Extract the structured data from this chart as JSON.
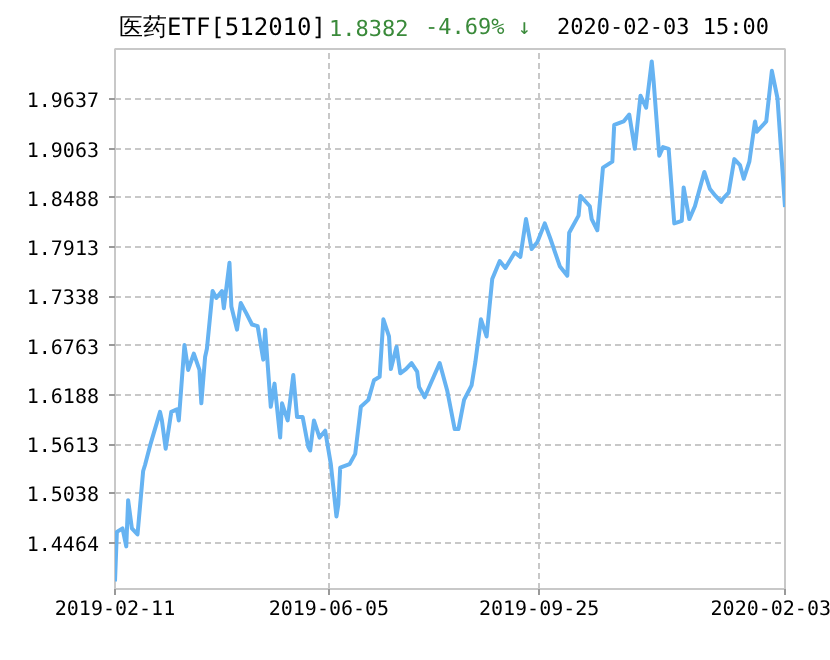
{
  "chart_data": {
    "type": "line",
    "title": "医药ETF[512010]",
    "annotations": [
      "1.8382",
      "-4.69% ↓",
      "2020-02-03 15:00"
    ],
    "x": [
      "2019-02-11",
      "2019-02-12",
      "2019-02-15",
      "2019-02-17",
      "2019-02-18",
      "2019-02-20",
      "2019-02-23",
      "2019-02-26",
      "2019-02-27",
      "2019-03-02",
      "2019-03-07",
      "2019-03-08",
      "2019-03-10",
      "2019-03-13",
      "2019-03-16",
      "2019-03-17",
      "2019-03-20",
      "2019-03-22",
      "2019-03-25",
      "2019-03-28",
      "2019-03-29",
      "2019-03-31",
      "2019-04-01",
      "2019-04-04",
      "2019-04-06",
      "2019-04-09",
      "2019-04-10",
      "2019-04-13",
      "2019-04-14",
      "2019-04-17",
      "2019-04-19",
      "2019-04-22",
      "2019-04-25",
      "2019-04-28",
      "2019-05-01",
      "2019-05-02",
      "2019-05-05",
      "2019-05-07",
      "2019-05-10",
      "2019-05-11",
      "2019-05-14",
      "2019-05-17",
      "2019-05-19",
      "2019-05-22",
      "2019-05-25",
      "2019-05-26",
      "2019-05-28",
      "2019-05-31",
      "2019-06-03",
      "2019-06-06",
      "2019-06-09",
      "2019-06-10",
      "2019-06-11",
      "2019-06-16",
      "2019-06-19",
      "2019-06-22",
      "2019-06-26",
      "2019-06-29",
      "2019-07-02",
      "2019-07-04",
      "2019-07-07",
      "2019-07-08",
      "2019-07-11",
      "2019-07-13",
      "2019-07-16",
      "2019-07-19",
      "2019-07-22",
      "2019-07-23",
      "2019-07-26",
      "2019-08-03",
      "2019-08-07",
      "2019-08-11",
      "2019-08-13",
      "2019-08-16",
      "2019-08-20",
      "2019-08-22",
      "2019-08-25",
      "2019-08-28",
      "2019-08-31",
      "2019-09-04",
      "2019-09-07",
      "2019-09-12",
      "2019-09-15",
      "2019-09-18",
      "2019-09-21",
      "2019-09-24",
      "2019-09-28",
      "2019-10-01",
      "2019-10-06",
      "2019-10-10",
      "2019-10-11",
      "2019-10-16",
      "2019-10-17",
      "2019-10-22",
      "2019-10-23",
      "2019-10-26",
      "2019-10-29",
      "2019-11-03",
      "2019-11-04",
      "2019-11-09",
      "2019-11-12",
      "2019-11-15",
      "2019-11-18",
      "2019-11-21",
      "2019-11-24",
      "2019-11-25",
      "2019-11-28",
      "2019-11-30",
      "2019-12-03",
      "2019-12-06",
      "2019-12-10",
      "2019-12-11",
      "2019-12-14",
      "2019-12-17",
      "2019-12-19",
      "2019-12-22",
      "2019-12-25",
      "2019-12-28",
      "2019-12-31",
      "2020-01-01",
      "2020-01-04",
      "2020-01-07",
      "2020-01-10",
      "2020-01-12",
      "2020-01-15",
      "2020-01-18",
      "2020-01-19",
      "2020-01-24",
      "2020-01-27",
      "2020-01-30",
      "2020-02-03"
    ],
    "series": [
      {
        "color": "#66b3f2",
        "values": [
          1.401,
          1.459,
          1.463,
          1.442,
          1.496,
          1.463,
          1.456,
          1.53,
          1.537,
          1.562,
          1.599,
          1.589,
          1.556,
          1.599,
          1.602,
          1.589,
          1.677,
          1.648,
          1.667,
          1.648,
          1.609,
          1.663,
          1.673,
          1.74,
          1.732,
          1.74,
          1.72,
          1.773,
          1.722,
          1.695,
          1.726,
          1.714,
          1.701,
          1.699,
          1.66,
          1.695,
          1.605,
          1.632,
          1.569,
          1.609,
          1.589,
          1.642,
          1.593,
          1.593,
          1.558,
          1.554,
          1.589,
          1.569,
          1.577,
          1.538,
          1.477,
          1.491,
          1.534,
          1.538,
          1.55,
          1.605,
          1.613,
          1.636,
          1.64,
          1.707,
          1.687,
          1.649,
          1.675,
          1.644,
          1.649,
          1.656,
          1.646,
          1.628,
          1.616,
          1.656,
          1.624,
          1.579,
          1.579,
          1.613,
          1.63,
          1.657,
          1.707,
          1.687,
          1.754,
          1.775,
          1.767,
          1.785,
          1.78,
          1.824,
          1.789,
          1.797,
          1.819,
          1.801,
          1.769,
          1.758,
          1.808,
          1.828,
          1.851,
          1.839,
          1.824,
          1.811,
          1.884,
          1.891,
          1.934,
          1.938,
          1.946,
          1.906,
          1.968,
          1.954,
          2.008,
          1.985,
          1.898,
          1.908,
          1.906,
          1.819,
          1.822,
          1.861,
          1.824,
          1.839,
          1.855,
          1.879,
          1.859,
          1.851,
          1.844,
          1.848,
          1.855,
          1.894,
          1.887,
          1.871,
          1.891,
          1.938,
          1.926,
          1.938,
          1.997,
          1.965,
          1.838
        ]
      }
    ],
    "xlim": [
      "2019-02-11",
      "2020-02-03"
    ],
    "xticks": [
      "2019-02-11",
      "2019-06-05",
      "2019-09-25",
      "2020-02-03"
    ],
    "ylim": [
      1.3923,
      2.0225
    ],
    "yticks": [
      1.4464,
      1.5038,
      1.5613,
      1.6188,
      1.6763,
      1.7338,
      1.7913,
      1.8488,
      1.9063,
      1.9637
    ],
    "grid": true,
    "line_style": "solid",
    "marker": "none"
  }
}
